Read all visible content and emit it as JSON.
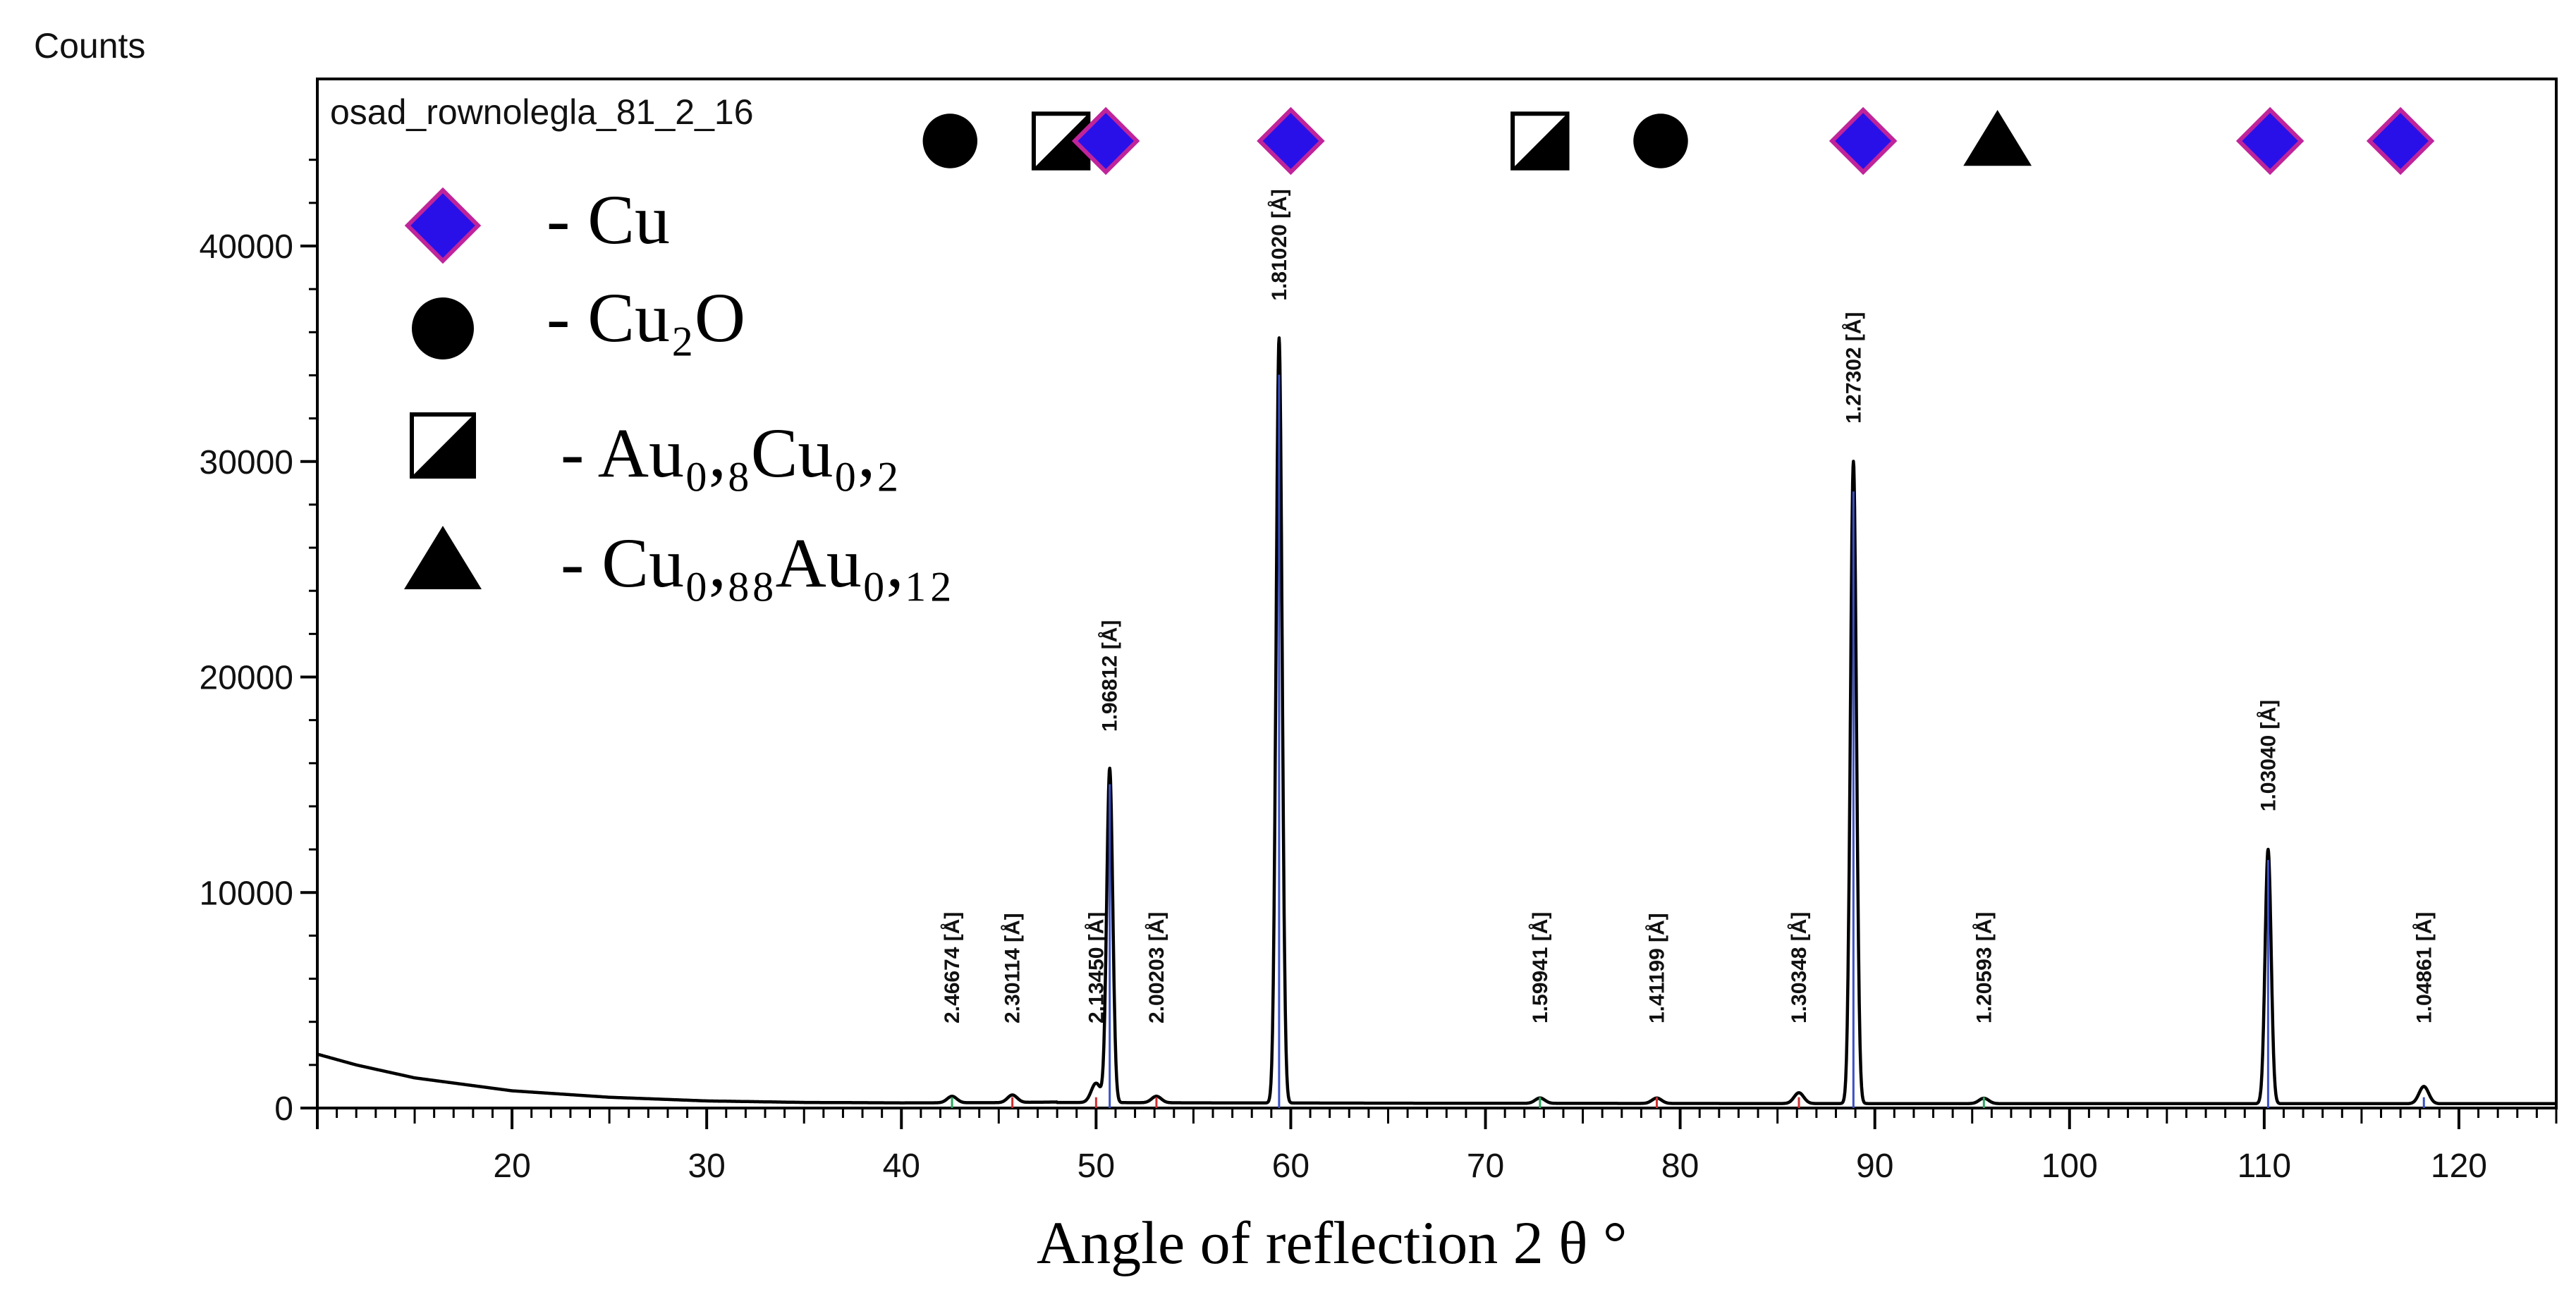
{
  "chart_data": {
    "type": "line",
    "title": "osad_rownolegla_81_2_16",
    "ylabel": "Counts",
    "xlabel": "Angle of reflection 2 θ °",
    "xlim": [
      10,
      125
    ],
    "ylim": [
      0,
      46000
    ],
    "x_ticks": [
      20,
      30,
      40,
      50,
      60,
      70,
      80,
      90,
      100,
      110,
      120
    ],
    "y_ticks": [
      0,
      10000,
      20000,
      30000,
      40000
    ],
    "grid": false,
    "legend_position": "top-left",
    "legend": [
      {
        "symbol": "diamond-icon",
        "color": "#2a10e8",
        "border": "#c0249a",
        "label": "- Cu"
      },
      {
        "symbol": "circle-icon",
        "color": "#000000",
        "label": "- Cu₂O"
      },
      {
        "symbol": "half-square-icon",
        "color": "#000000",
        "label": "- Au₀,₈Cu₀,₂"
      },
      {
        "symbol": "triangle-icon",
        "color": "#000000",
        "label": "- Cu₀,₈₈Au₀,₁₂"
      }
    ],
    "phase_markers": [
      {
        "x": 42.5,
        "symbol": "circle-icon"
      },
      {
        "x": 48.2,
        "symbol": "half-square-icon"
      },
      {
        "x": 50.5,
        "symbol": "diamond-icon"
      },
      {
        "x": 60.0,
        "symbol": "diamond-icon"
      },
      {
        "x": 72.8,
        "symbol": "half-square-icon"
      },
      {
        "x": 79.0,
        "symbol": "circle-icon"
      },
      {
        "x": 89.4,
        "symbol": "diamond-icon"
      },
      {
        "x": 96.3,
        "symbol": "triangle-icon"
      },
      {
        "x": 110.3,
        "symbol": "diamond-icon"
      },
      {
        "x": 117.0,
        "symbol": "diamond-icon"
      }
    ],
    "peaks": [
      {
        "x": 42.6,
        "y": 300,
        "label": "2.46674 [Å]",
        "tick_color": "#2aa860"
      },
      {
        "x": 45.7,
        "y": 350,
        "label": "2.30114 [Å]",
        "tick_color": "#d03030"
      },
      {
        "x": 50.0,
        "y": 900,
        "label": "2.13450 [Å]",
        "tick_color": "#d03030"
      },
      {
        "x": 50.7,
        "y": 15500,
        "label": "1.96812 [Å]",
        "tick_color": "#3a50c8"
      },
      {
        "x": 53.1,
        "y": 300,
        "label": "2.00203 [Å]",
        "tick_color": "#d03030"
      },
      {
        "x": 59.4,
        "y": 35500,
        "label": "1.81020 [Å]",
        "tick_color": "#3a50c8"
      },
      {
        "x": 72.8,
        "y": 250,
        "label": "1.59941 [Å]",
        "tick_color": "#2aa860"
      },
      {
        "x": 78.8,
        "y": 250,
        "label": "1.41199 [Å]",
        "tick_color": "#d03030"
      },
      {
        "x": 86.1,
        "y": 500,
        "label": "1.30348 [Å]",
        "tick_color": "#d03030"
      },
      {
        "x": 88.9,
        "y": 29800,
        "label": "1.27302 [Å]",
        "tick_color": "#3a50c8"
      },
      {
        "x": 95.6,
        "y": 250,
        "label": "1.20593 [Å]",
        "tick_color": "#2aa860"
      },
      {
        "x": 110.2,
        "y": 11800,
        "label": "1.03040 [Å]",
        "tick_color": "#3a50c8"
      },
      {
        "x": 118.2,
        "y": 800,
        "label": "1.04861 [Å]",
        "tick_color": "#3a50c8"
      }
    ],
    "background": {
      "x": [
        10,
        12,
        15,
        20,
        25,
        30,
        35,
        40,
        45,
        48
      ],
      "y": [
        2500,
        2000,
        1400,
        800,
        500,
        330,
        260,
        240,
        250,
        280
      ]
    },
    "baseline_after": 200
  }
}
